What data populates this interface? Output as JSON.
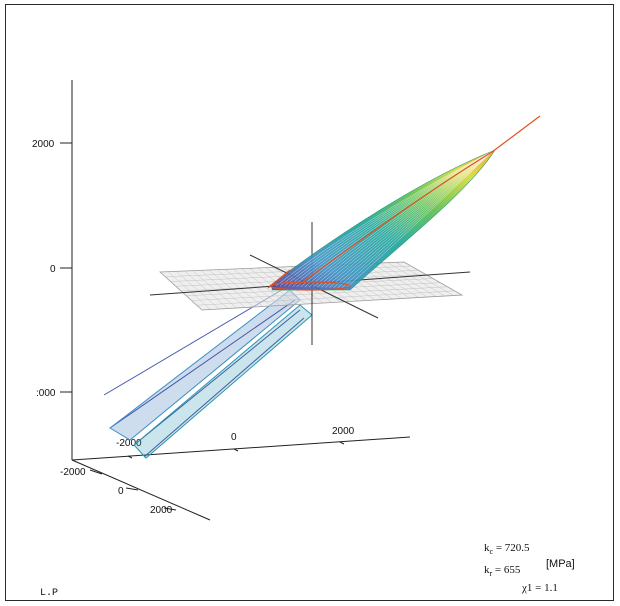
{
  "chart_data": {
    "type": "surface3d",
    "title": "",
    "z_ticks": [
      "2000",
      "0",
      ":000"
    ],
    "x_ticks": [
      "-2000",
      "0",
      "2000"
    ],
    "y_ticks": [
      "-2000",
      "0",
      "2000"
    ],
    "colormap": [
      "#5a3f9a",
      "#3a8fc4",
      "#1aa39a",
      "#5cbf4a",
      "#d8d83a",
      "#f0a02a"
    ],
    "grid": true,
    "plane_color": "#9a9a9a",
    "curve_color": "#e05020"
  },
  "params": {
    "kc_label": "k",
    "kc_sub": "c",
    "kc_value": "= 720.5",
    "kr_label": "k",
    "kr_sub": "r",
    "kr_value": "= 655",
    "unit": "[MPa]",
    "chi_value": "χ1 = 1.1"
  },
  "corner_label": "L.P"
}
